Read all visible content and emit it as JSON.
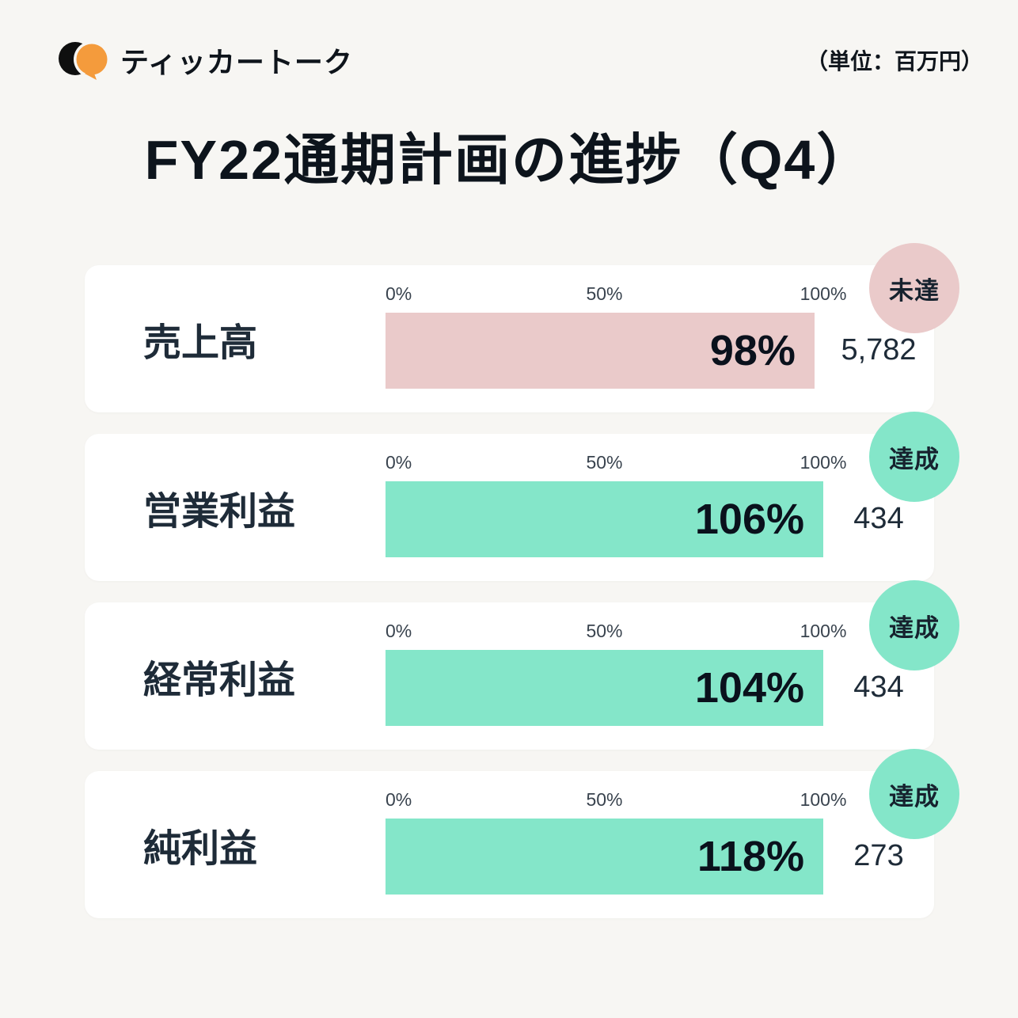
{
  "page": {
    "background": "#f7f6f3",
    "title": "FY22通期計画の進捗（Q4）",
    "unit_note": "（単位：百万円）"
  },
  "brand": {
    "name": "ティッカートーク",
    "logo_black": "#0f0f0f",
    "logo_orange": "#F49B3C"
  },
  "scale": {
    "ticks": [
      "0%",
      "50%",
      "100%"
    ]
  },
  "colors": {
    "achieved_fill": "#84E6C9",
    "missed_fill": "#EACACA",
    "text_dark": "#1e2b38"
  },
  "chart_data": {
    "type": "bar",
    "title": "FY22通期計画の進捗（Q4）",
    "unit": "百万円",
    "orientation": "horizontal",
    "xlim": [
      0,
      100
    ],
    "x_ticks": [
      "0%",
      "50%",
      "100%"
    ],
    "rows": [
      {
        "label": "売上高",
        "percent": 98,
        "percent_label": "98%",
        "value": "5,782",
        "status": "未達",
        "achieved": false
      },
      {
        "label": "営業利益",
        "percent": 106,
        "percent_label": "106%",
        "value": "434",
        "status": "達成",
        "achieved": true
      },
      {
        "label": "経常利益",
        "percent": 104,
        "percent_label": "104%",
        "value": "434",
        "status": "達成",
        "achieved": true
      },
      {
        "label": "純利益",
        "percent": 118,
        "percent_label": "118%",
        "value": "273",
        "status": "達成",
        "achieved": true
      }
    ]
  }
}
